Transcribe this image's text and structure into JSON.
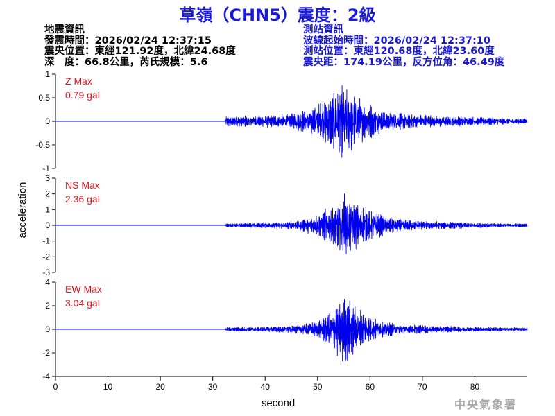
{
  "title": "草嶺（CHN5）震度：2級",
  "earthquake_info": {
    "heading": "地震資訊",
    "origin_time": "發震時間：2026/02/24 12:37:15",
    "epicenter": "震央位置：東經121.92度，北緯24.68度",
    "depth_magnitude": "深　度：66.8公里，芮氏規模：5.6"
  },
  "station_info": {
    "heading": "測站資訊",
    "wave_start": "波線起始時間：2026/02/24 12:37:10",
    "station_location": "測站位置：東經120.68度，北緯23.60度",
    "distance_azimuth": "震央距：174.19公里，反方位角：46.49度"
  },
  "watermark": "中央氣象署",
  "colors": {
    "title": "#1a1ad6",
    "trace": "#0000ee",
    "max_label": "#e0141e"
  },
  "chart_data": {
    "type": "line",
    "xlabel": "second",
    "ylabel": "acceleration",
    "xlim": [
      0,
      90
    ],
    "x_ticks": [
      "0",
      "10",
      "20",
      "30",
      "40",
      "50",
      "60",
      "70",
      "80"
    ],
    "x_tick_values": [
      0,
      10,
      20,
      30,
      40,
      50,
      60,
      70,
      80
    ],
    "series": [
      {
        "name": "Z",
        "max_label": "Z Max",
        "max_value": "0.79 gal",
        "ylim": [
          -1,
          1
        ],
        "y_ticks": [
          "-1",
          "-0.5",
          "0",
          "0.5",
          "1"
        ],
        "y_tick_values": [
          -1,
          -0.5,
          0,
          0.5,
          1
        ],
        "envelope": [
          [
            0,
            0.0
          ],
          [
            32.3,
            0.0
          ],
          [
            32.6,
            0.12
          ],
          [
            40,
            0.12
          ],
          [
            45,
            0.16
          ],
          [
            50,
            0.32
          ],
          [
            53,
            0.62
          ],
          [
            54.5,
            0.72
          ],
          [
            56,
            0.65
          ],
          [
            58,
            0.45
          ],
          [
            60,
            0.35
          ],
          [
            63,
            0.22
          ],
          [
            67,
            0.16
          ],
          [
            72,
            0.12
          ],
          [
            80,
            0.09
          ],
          [
            90,
            0.06
          ]
        ]
      },
      {
        "name": "NS",
        "max_label": "NS Max",
        "max_value": "2.36 gal",
        "ylim": [
          -3,
          3
        ],
        "y_ticks": [
          "-3",
          "-2",
          "-1",
          "0",
          "1",
          "2",
          "3"
        ],
        "y_tick_values": [
          -3,
          -2,
          -1,
          0,
          1,
          2,
          3
        ],
        "envelope": [
          [
            0,
            0.0
          ],
          [
            32.3,
            0.0
          ],
          [
            32.6,
            0.12
          ],
          [
            40,
            0.18
          ],
          [
            46,
            0.28
          ],
          [
            50,
            0.65
          ],
          [
            53,
            1.3
          ],
          [
            55,
            2.0
          ],
          [
            56,
            1.6
          ],
          [
            58,
            1.3
          ],
          [
            60,
            0.9
          ],
          [
            63,
            0.55
          ],
          [
            67,
            0.35
          ],
          [
            72,
            0.25
          ],
          [
            80,
            0.16
          ],
          [
            90,
            0.1
          ]
        ]
      },
      {
        "name": "EW",
        "max_label": "EW Max",
        "max_value": "3.04 gal",
        "ylim": [
          -4,
          4
        ],
        "y_ticks": [
          "-4",
          "-2",
          "0",
          "2",
          "4"
        ],
        "y_tick_values": [
          -4,
          -2,
          0,
          2,
          4
        ],
        "envelope": [
          [
            0,
            0.0
          ],
          [
            32.3,
            0.0
          ],
          [
            32.6,
            0.18
          ],
          [
            40,
            0.22
          ],
          [
            46,
            0.35
          ],
          [
            50,
            0.7
          ],
          [
            53,
            1.7
          ],
          [
            55,
            2.8
          ],
          [
            56.5,
            2.2
          ],
          [
            58,
            1.6
          ],
          [
            60,
            1.0
          ],
          [
            63,
            0.6
          ],
          [
            67,
            0.4
          ],
          [
            72,
            0.3
          ],
          [
            80,
            0.2
          ],
          [
            90,
            0.14
          ]
        ]
      }
    ]
  }
}
